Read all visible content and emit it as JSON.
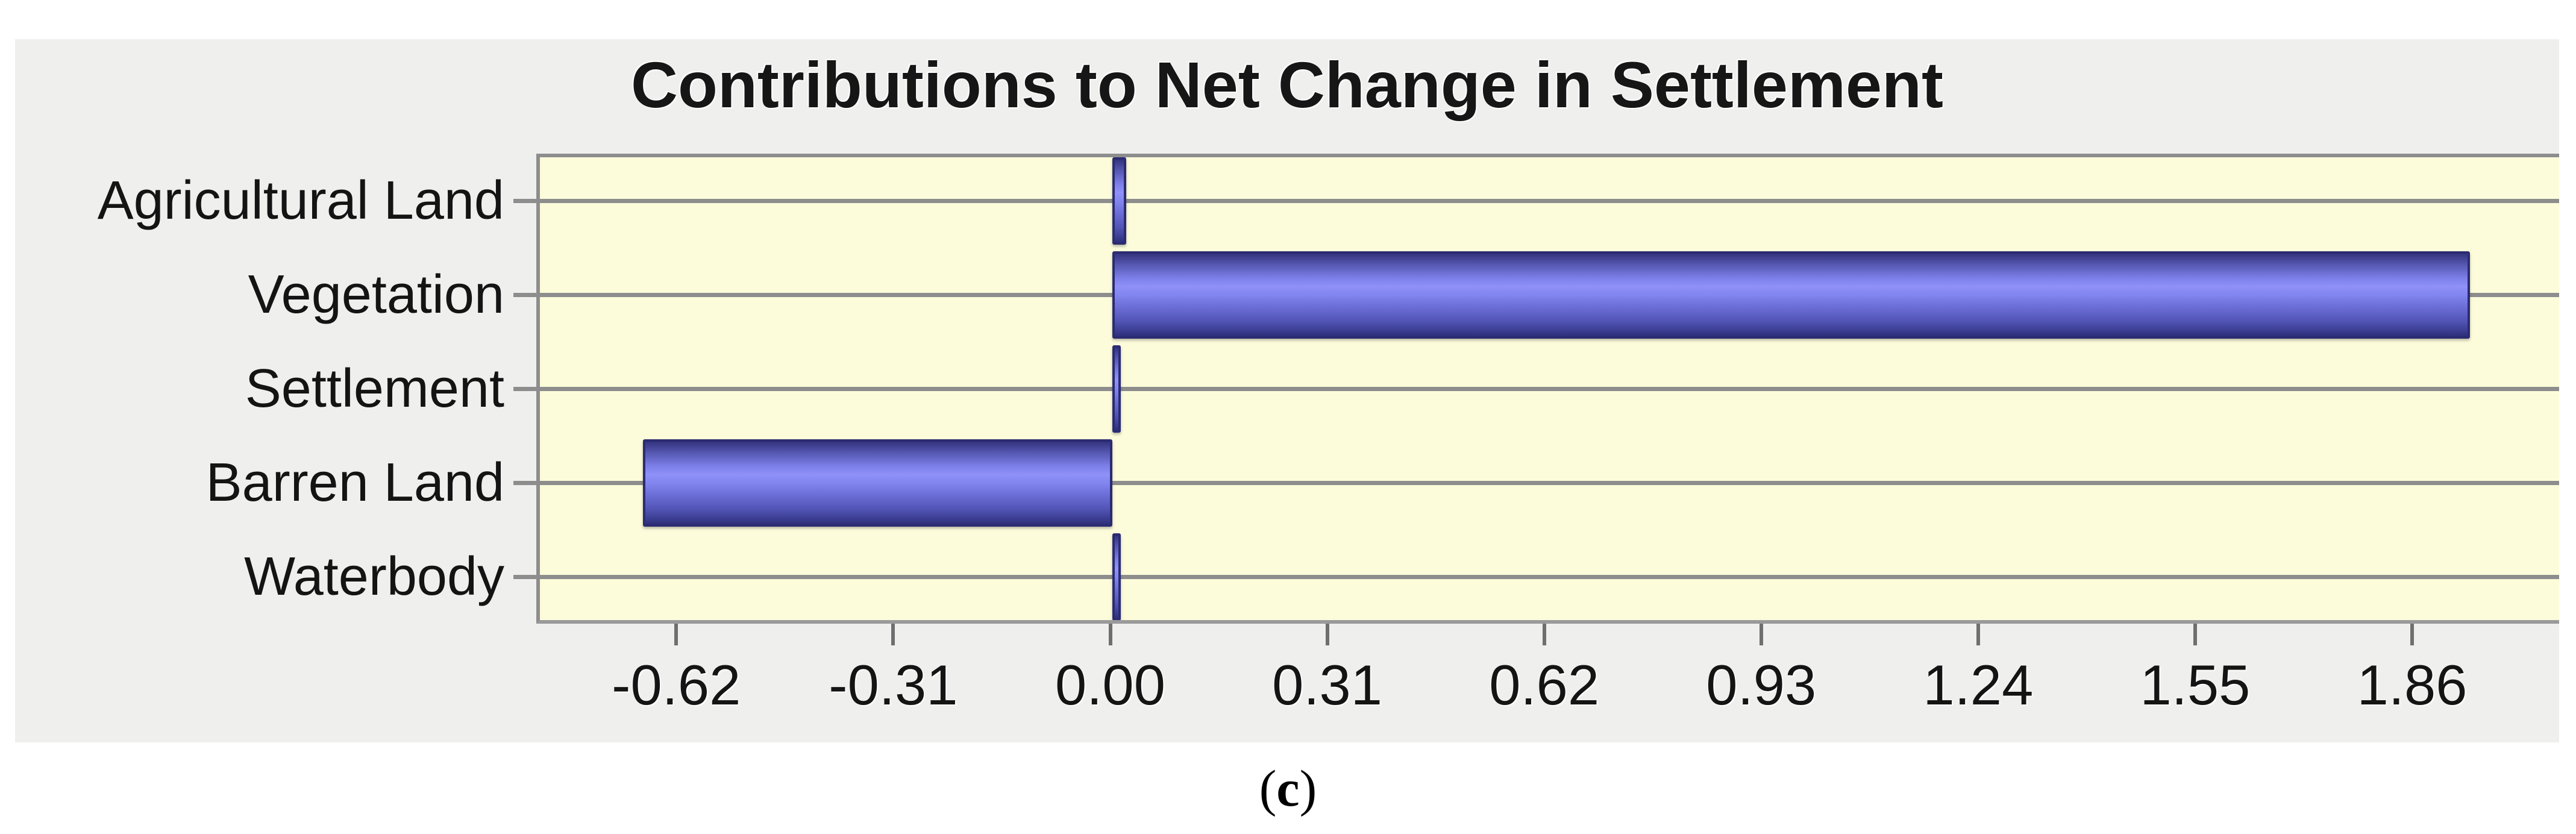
{
  "figure": {
    "caption_open": "(",
    "caption_letter": "c",
    "caption_close": ")"
  },
  "chart_data": {
    "type": "bar",
    "orientation": "horizontal",
    "title": "Contributions to Net Change in Settlement",
    "xlabel": "",
    "ylabel": "",
    "categories": [
      "Agricultural Land",
      "Vegetation",
      "Settlement",
      "Barren Land",
      "Waterbody"
    ],
    "values": [
      0.02,
      1.94,
      0.01,
      -0.67,
      0.01
    ],
    "x_tick_labels": [
      "-0.62",
      "-0.31",
      "0.00",
      "0.31",
      "0.62",
      "0.93",
      "1.24",
      "1.55",
      "1.86"
    ],
    "x_tick_values": [
      -0.62,
      -0.31,
      0.0,
      0.31,
      0.62,
      0.93,
      1.24,
      1.55,
      1.86
    ],
    "xlim": [
      -0.82,
      2.07
    ],
    "grid": "horizontal-gridline-at-each-category-center",
    "legend": null,
    "colors": {
      "panel_bg": "#EFEFEE",
      "plot_bg": "#FCFCDB",
      "grid": "#8D8D8D",
      "bar_edge": "#2B2B72",
      "bar_dark": "#33337E",
      "bar_light": "#8F91F8",
      "text": "#141414"
    }
  }
}
